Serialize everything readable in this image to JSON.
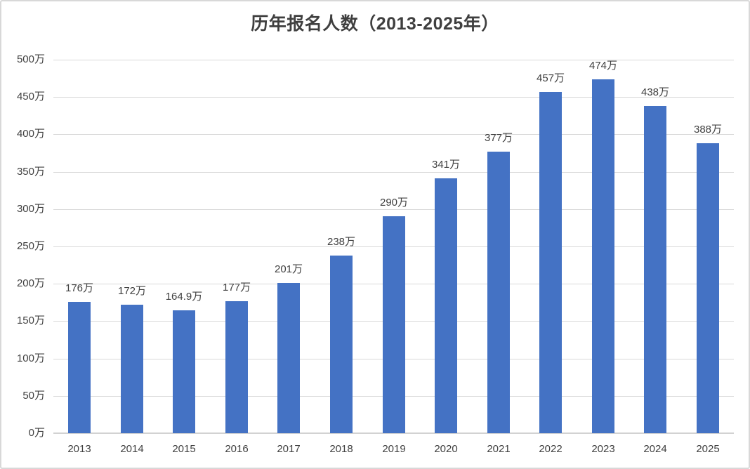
{
  "chart_data": {
    "type": "bar",
    "title": "历年报名人数（2013-2025年）",
    "categories": [
      "2013",
      "2014",
      "2015",
      "2016",
      "2017",
      "2018",
      "2019",
      "2020",
      "2021",
      "2022",
      "2023",
      "2024",
      "2025"
    ],
    "values": [
      176,
      172,
      164.9,
      177,
      201,
      238,
      290,
      341,
      377,
      457,
      474,
      438,
      388
    ],
    "data_labels": [
      "176万",
      "172万",
      "164.9万",
      "177万",
      "201万",
      "238万",
      "290万",
      "341万",
      "377万",
      "457万",
      "474万",
      "438万",
      "388万"
    ],
    "y_tick_labels": [
      "0万",
      "50万",
      "100万",
      "150万",
      "200万",
      "250万",
      "300万",
      "350万",
      "400万",
      "450万",
      "500万"
    ],
    "ylim": [
      0,
      500
    ],
    "y_tick_interval": 50,
    "xlabel": "",
    "ylabel": "",
    "grid": true,
    "legend": "none",
    "colors": {
      "bar": "#4472c4",
      "gridline": "#d9d9d9",
      "axis_line": "#d2d2d2",
      "text": "#404040",
      "title": "#3f3f3f",
      "background": "#ffffff",
      "border": "#d8d8d8"
    }
  }
}
